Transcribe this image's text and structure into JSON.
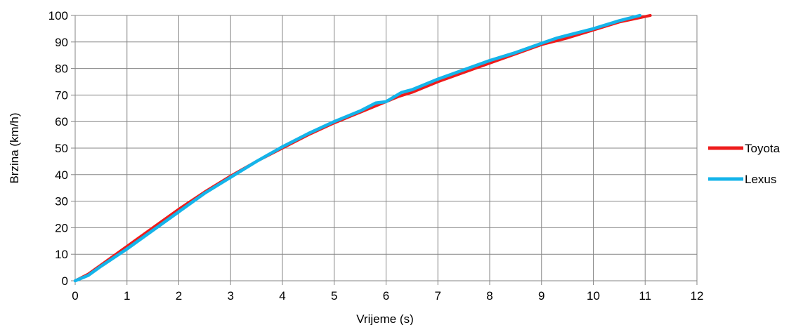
{
  "chart_data": {
    "type": "line",
    "title": "",
    "xlabel": "Vrijeme (s)",
    "ylabel": "Brzina (km/h)",
    "xlim": [
      0,
      12
    ],
    "ylim": [
      0,
      100
    ],
    "xticks": [
      "0",
      "1",
      "2",
      "3",
      "4",
      "5",
      "6",
      "7",
      "8",
      "9",
      "10",
      "11",
      "12"
    ],
    "yticks": [
      "0",
      "10",
      "20",
      "30",
      "40",
      "50",
      "60",
      "70",
      "80",
      "90",
      "100"
    ],
    "grid": true,
    "legend_position": "right",
    "series": [
      {
        "name": "Toyota",
        "color": "#ee1c1c",
        "points": [
          [
            0,
            0
          ],
          [
            0.25,
            2.5
          ],
          [
            0.5,
            6
          ],
          [
            1,
            13
          ],
          [
            1.5,
            20
          ],
          [
            2,
            27
          ],
          [
            2.5,
            33.5
          ],
          [
            3,
            39.5
          ],
          [
            3.5,
            45
          ],
          [
            4,
            50
          ],
          [
            4.5,
            55
          ],
          [
            5,
            59.5
          ],
          [
            5.5,
            63.5
          ],
          [
            6,
            67.5
          ],
          [
            6.25,
            69.5
          ],
          [
            6.5,
            71
          ],
          [
            7,
            75
          ],
          [
            7.5,
            78.5
          ],
          [
            8,
            82
          ],
          [
            8.5,
            85.5
          ],
          [
            9,
            89
          ],
          [
            9.5,
            91.5
          ],
          [
            10,
            94.5
          ],
          [
            10.5,
            97.5
          ],
          [
            11.1,
            100
          ]
        ]
      },
      {
        "name": "Lexus",
        "color": "#14b4ea",
        "points": [
          [
            0,
            0
          ],
          [
            0.25,
            2
          ],
          [
            0.5,
            5.5
          ],
          [
            1,
            12
          ],
          [
            1.5,
            19
          ],
          [
            2,
            26
          ],
          [
            2.5,
            33
          ],
          [
            3,
            39
          ],
          [
            3.5,
            45
          ],
          [
            4,
            50.5
          ],
          [
            4.5,
            55.5
          ],
          [
            5,
            60
          ],
          [
            5.5,
            64
          ],
          [
            5.8,
            67
          ],
          [
            6,
            67.5
          ],
          [
            6.3,
            71
          ],
          [
            6.5,
            72
          ],
          [
            7,
            76
          ],
          [
            7.5,
            79.5
          ],
          [
            8,
            83
          ],
          [
            8.5,
            86
          ],
          [
            9,
            89.5
          ],
          [
            9.3,
            91.5
          ],
          [
            9.5,
            92.5
          ],
          [
            10,
            95
          ],
          [
            10.5,
            98
          ],
          [
            10.9,
            100
          ]
        ]
      }
    ]
  }
}
